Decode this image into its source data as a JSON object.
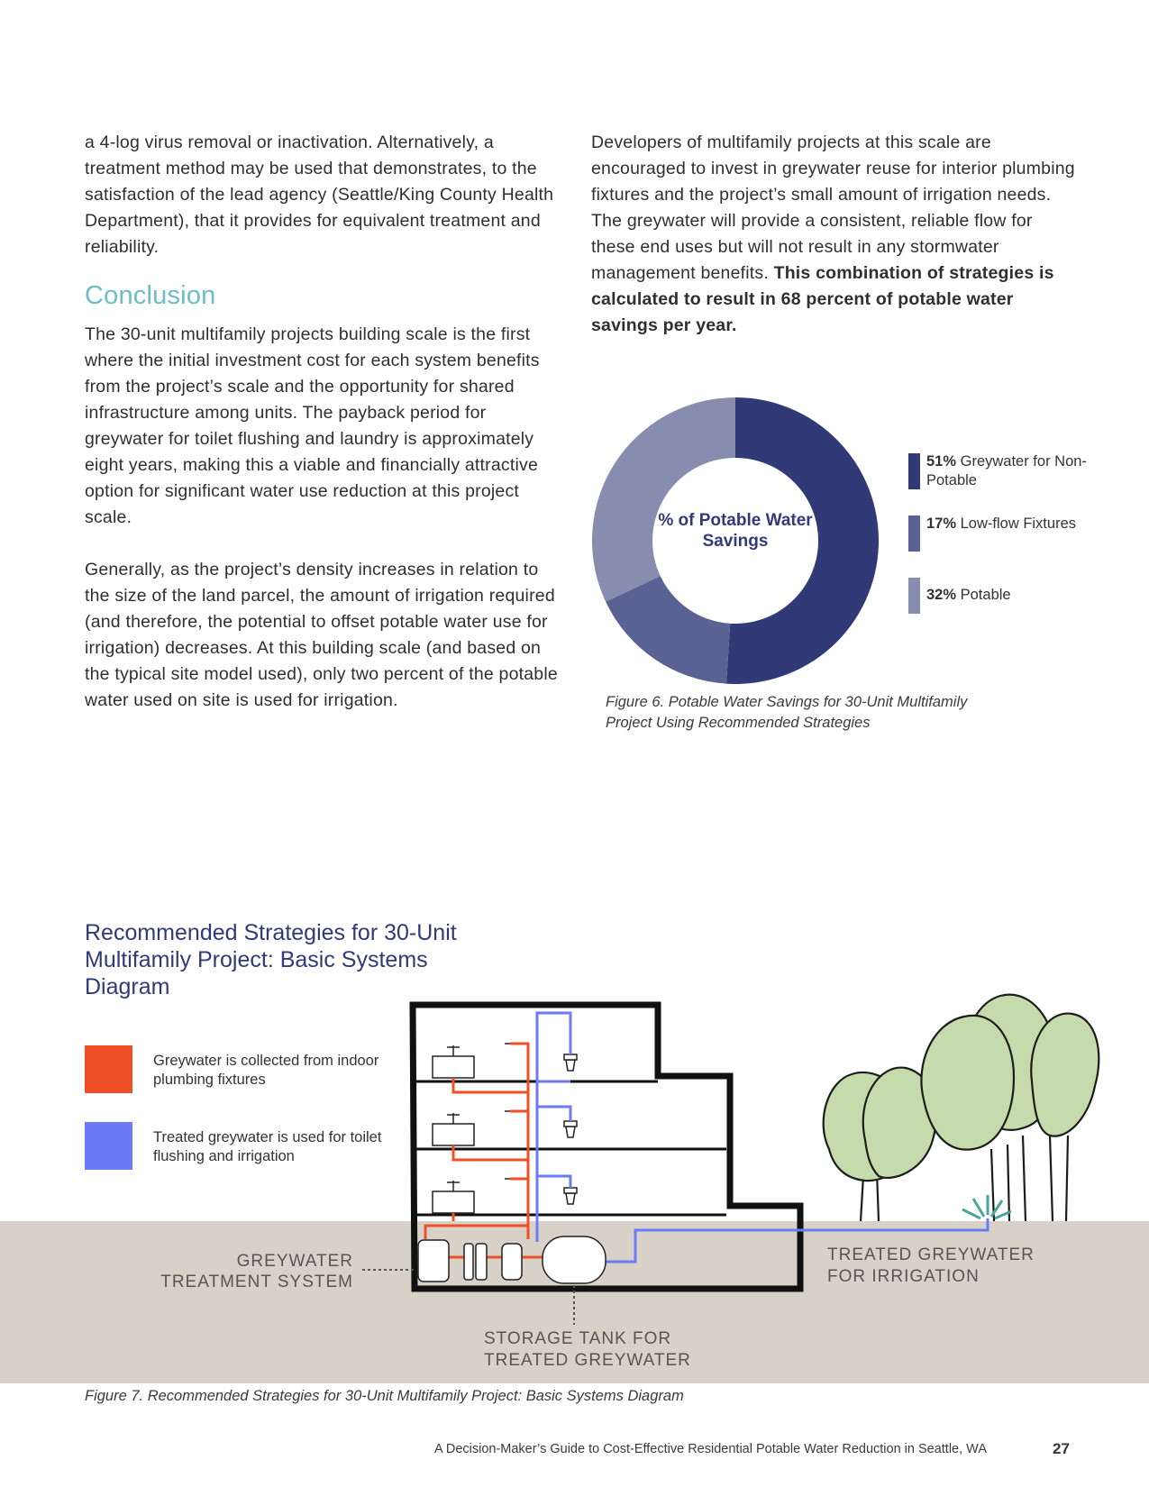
{
  "left_column": {
    "intro": "a 4-log virus removal or inactivation. Alternatively, a treatment method may be used that demonstrates, to the satisfaction of the lead agency (Seattle/King County Health Department), that it provides for equivalent treatment and reliability.",
    "conclusion_heading": "Conclusion",
    "para1": "The 30-unit multifamily projects building scale is the first where the initial investment cost for each system benefits from the project’s scale and the opportunity for shared infrastructure among units. The payback period for greywater for toilet flushing and laundry is approximately eight years, making this a viable and financially attractive option for significant water use reduction at this project scale.",
    "para2": "Generally, as the project’s density increases in relation to the size of the land parcel, the amount of irrigation required (and therefore, the potential to offset potable water use for irrigation) decreases. At this building scale (and based on the typical site model used), only two percent of the potable water used on site is used for irrigation."
  },
  "right_column": {
    "para": "Developers of multifamily projects at this scale are encouraged to invest in greywater reuse for interior plumbing fixtures and the project’s small amount of irrigation needs. The greywater will provide a consistent, reliable flow for these end uses but will not result in any stormwater management benefits.",
    "para_bold": "This combination of strategies is calculated to result in 68 percent of potable water savings per year."
  },
  "chart_data": {
    "type": "pie",
    "title": "% of Potable Water Savings",
    "slices": [
      {
        "pct_label": "51%",
        "label": "Greywater for Non-Potable",
        "value": 51,
        "color": "#313a77"
      },
      {
        "pct_label": "17%",
        "label": "Low-flow Fixtures",
        "value": 17,
        "color": "#5a6193"
      },
      {
        "pct_label": "32%",
        "label": "Potable",
        "value": 32,
        "color": "#878daf"
      }
    ],
    "legend_position": "right"
  },
  "figure6_caption": "Figure 6. Potable Water Savings for 30-Unit Multifamily Project Using Recommended Strategies",
  "diagram": {
    "title": "Recommended Strategies for 30-Unit Multifamily Project: Basic Systems Diagram",
    "key_greywater_collected": "Greywater is collected from indoor plumbing fixtures",
    "key_treated_greywater": "Treated greywater is used for toilet flushing and  irrigation",
    "label_treatment_line1": "GREYWATER",
    "label_treatment_line2": "TREATMENT SYSTEM",
    "label_irrigation_line1": "TREATED GREYWATER",
    "label_irrigation_line2": "FOR IRRIGATION",
    "label_storage_line1": "STORAGE TANK FOR",
    "label_storage_line2": "TREATED GREYWATER",
    "colors": {
      "greywater": "#f04f25",
      "treated": "#6a7bf5",
      "ground": "#d8d1c8",
      "tree": "#c5dbac"
    }
  },
  "figure7_caption": "Figure 7. Recommended Strategies for 30-Unit Multifamily Project: Basic Systems Diagram",
  "footer": {
    "text": "A Decision-Maker’s Guide to Cost-Effective Residential Potable Water Reduction in Seattle, WA",
    "page_number": "27"
  }
}
